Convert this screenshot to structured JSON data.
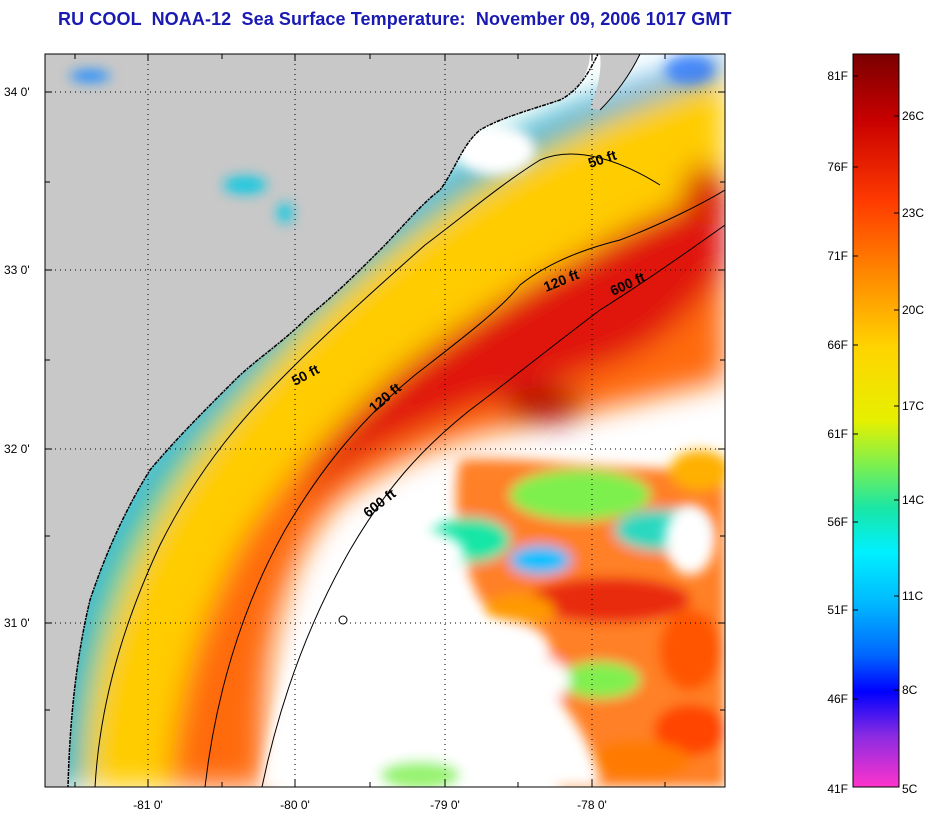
{
  "title": "RU COOL  NOAA-12  Sea Surface Temperature:  November 09, 2006 1017 GMT",
  "map": {
    "lat_ticks": [
      "34 0'",
      "33 0'",
      "32 0'",
      "31 0'"
    ],
    "lon_ticks": [
      "-81 0'",
      "-80 0'",
      "-79 0'",
      "-78 0'"
    ],
    "contour_labels": [
      "50 ft",
      "120 ft",
      "600 ft",
      "50 ft",
      "120 ft",
      "600 ft"
    ],
    "colors": {
      "land": "#c8c8c8",
      "cloud": "#ffffff",
      "warm_core": "#e8200c",
      "mid_shelf": "#ffcc00",
      "nearshore": "#39d3a0",
      "coast_edge": "#1f6cff"
    }
  },
  "colorbar": {
    "f_labels": [
      "81F",
      "76F",
      "71F",
      "66F",
      "61F",
      "56F",
      "51F",
      "46F",
      "41F"
    ],
    "c_labels": [
      "26C",
      "23C",
      "20C",
      "17C",
      "14C",
      "11C",
      "8C",
      "5C"
    ],
    "stops": [
      "#7a0000",
      "#c80000",
      "#ff3a00",
      "#ff8800",
      "#ffd400",
      "#e6f000",
      "#7ef04e",
      "#19e6a6",
      "#00f0ff",
      "#00b8ff",
      "#0066ff",
      "#0000ff",
      "#8a2be2",
      "#ff33cc"
    ]
  }
}
